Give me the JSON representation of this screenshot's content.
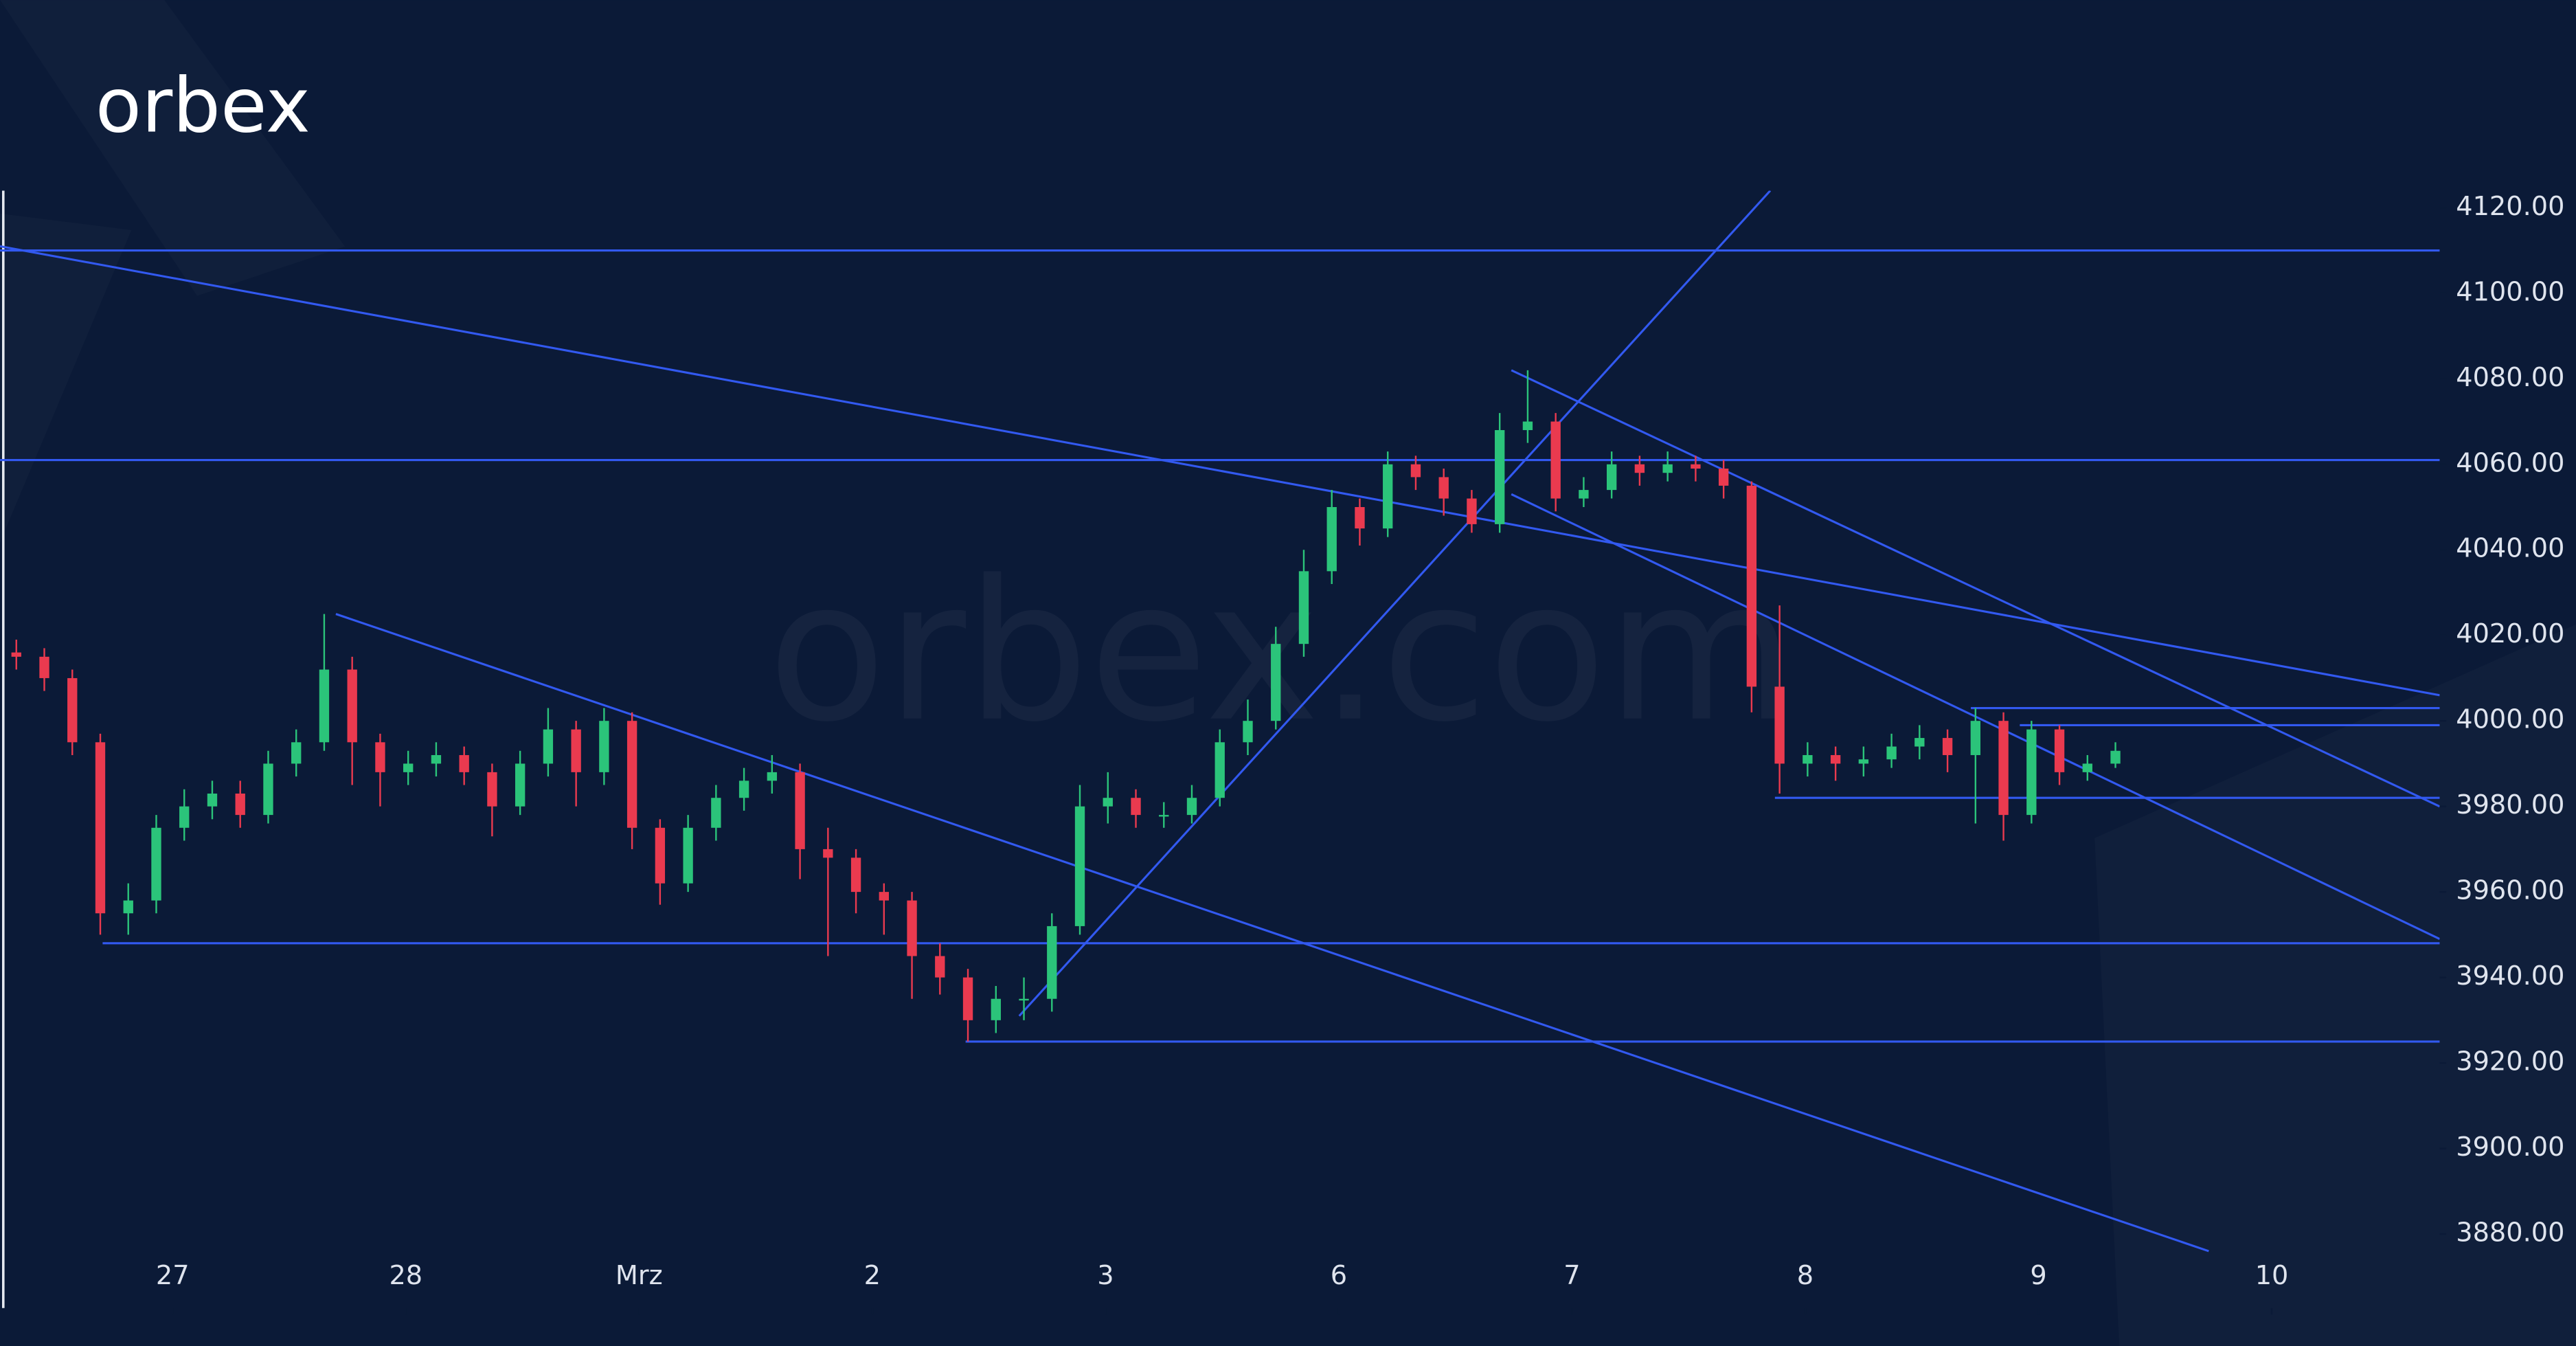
{
  "logo": "orbex",
  "watermark": "orbex.com",
  "chart_data": {
    "type": "candlestick",
    "up_color": "#2bc47a",
    "down_color": "#ea3a4f",
    "line_color": "#3259f0",
    "xlim": [
      -0.74,
      9.72
    ],
    "ylim": [
      3865,
      4124
    ],
    "xticks": [
      {
        "value": 0,
        "label": "27"
      },
      {
        "value": 1,
        "label": "28"
      },
      {
        "value": 2,
        "label": "Mrz"
      },
      {
        "value": 3,
        "label": "2"
      },
      {
        "value": 4,
        "label": "3"
      },
      {
        "value": 5,
        "label": "6"
      },
      {
        "value": 6,
        "label": "7"
      },
      {
        "value": 7,
        "label": "8"
      },
      {
        "value": 8,
        "label": "9"
      },
      {
        "value": 9,
        "label": "10"
      }
    ],
    "yticks": [
      {
        "value": 3880,
        "label": "3880.00"
      },
      {
        "value": 3900,
        "label": "3900.00"
      },
      {
        "value": 3920,
        "label": "3920.00"
      },
      {
        "value": 3940,
        "label": "3940.00"
      },
      {
        "value": 3960,
        "label": "3960.00"
      },
      {
        "value": 3980,
        "label": "3980.00"
      },
      {
        "value": 4000,
        "label": "4000.00"
      },
      {
        "value": 4020,
        "label": "4020.00"
      },
      {
        "value": 4040,
        "label": "4040.00"
      },
      {
        "value": 4060,
        "label": "4060.00"
      },
      {
        "value": 4080,
        "label": "4080.00"
      },
      {
        "value": 4100,
        "label": "4100.00"
      },
      {
        "value": 4120,
        "label": "4120.00"
      }
    ],
    "x": [
      -0.67,
      -0.55,
      -0.43,
      -0.31,
      -0.19,
      -0.07,
      0.05,
      0.17,
      0.29,
      0.41,
      0.53,
      0.65,
      0.77,
      0.89,
      1.01,
      1.13,
      1.25,
      1.37,
      1.49,
      1.61,
      1.73,
      1.85,
      1.97,
      2.09,
      2.21,
      2.33,
      2.45,
      2.57,
      2.69,
      2.81,
      2.93,
      3.05,
      3.17,
      3.29,
      3.41,
      3.53,
      3.65,
      3.77,
      3.89,
      4.01,
      4.13,
      4.25,
      4.37,
      4.49,
      4.61,
      4.73,
      4.85,
      4.97,
      5.09,
      5.21,
      5.33,
      5.45,
      5.57,
      5.69,
      5.81,
      5.93,
      6.05,
      6.17,
      6.29,
      6.41,
      6.53,
      6.65,
      6.77,
      6.89,
      7.01,
      7.13,
      7.25,
      7.37,
      7.49,
      7.61,
      7.73,
      7.85,
      7.97,
      8.09,
      8.21,
      8.33
    ],
    "open": [
      4016,
      4015,
      4010,
      3995,
      3955,
      3958,
      3975,
      3980,
      3983,
      3978,
      3990,
      3995,
      4012,
      3995,
      3988,
      3990,
      3992,
      3988,
      3980,
      3990,
      3998,
      3988,
      4000,
      3975,
      3962,
      3975,
      3982,
      3986,
      3988,
      3970,
      3968,
      3960,
      3958,
      3945,
      3940,
      3930,
      3935,
      3935,
      3952,
      3980,
      3982,
      3978,
      3978,
      3982,
      3995,
      4000,
      4018,
      4035,
      4050,
      4045,
      4060,
      4057,
      4052,
      4046,
      4068,
      4070,
      4052,
      4054,
      4060,
      4058,
      4060,
      4059,
      4055,
      4008,
      3990,
      3992,
      3990,
      3991,
      3994,
      3996,
      3992,
      4000,
      3978,
      3998,
      3988,
      3990
    ],
    "high": [
      4019,
      4017,
      4012,
      3997,
      3962,
      3978,
      3984,
      3986,
      3986,
      3993,
      3998,
      4025,
      4015,
      3997,
      3993,
      3995,
      3994,
      3990,
      3993,
      4003,
      4000,
      4003,
      4002,
      3977,
      3978,
      3985,
      3989,
      3992,
      3990,
      3975,
      3970,
      3962,
      3960,
      3948,
      3942,
      3938,
      3940,
      3955,
      3985,
      3988,
      3984,
      3981,
      3985,
      3998,
      4005,
      4022,
      4040,
      4054,
      4052,
      4063,
      4062,
      4059,
      4054,
      4072,
      4082,
      4072,
      4057,
      4063,
      4062,
      4063,
      4062,
      4061,
      4056,
      4027,
      3995,
      3994,
      3994,
      3997,
      3999,
      3998,
      4003,
      4002,
      4000,
      3999,
      3992,
      3995
    ],
    "low": [
      4012,
      4007,
      3992,
      3950,
      3950,
      3955,
      3972,
      3977,
      3975,
      3976,
      3987,
      3993,
      3985,
      3980,
      3985,
      3987,
      3985,
      3973,
      3978,
      3987,
      3980,
      3985,
      3970,
      3957,
      3960,
      3972,
      3979,
      3983,
      3963,
      3945,
      3955,
      3950,
      3935,
      3936,
      3925,
      3927,
      3930,
      3932,
      3950,
      3976,
      3975,
      3975,
      3976,
      3980,
      3992,
      3998,
      4015,
      4032,
      4041,
      4043,
      4054,
      4048,
      4044,
      4044,
      4065,
      4049,
      4050,
      4052,
      4055,
      4056,
      4056,
      4052,
      4002,
      3983,
      3987,
      3986,
      3987,
      3989,
      3991,
      3988,
      3976,
      3972,
      3976,
      3985,
      3986,
      3989
    ],
    "close": [
      4015,
      4010,
      3995,
      3955,
      3958,
      3975,
      3980,
      3983,
      3978,
      3990,
      3995,
      4012,
      3995,
      3988,
      3990,
      3992,
      3988,
      3980,
      3990,
      3998,
      3988,
      4000,
      3975,
      3962,
      3975,
      3982,
      3986,
      3988,
      3970,
      3968,
      3960,
      3958,
      3945,
      3940,
      3930,
      3935,
      3935,
      3952,
      3980,
      3982,
      3978,
      3978,
      3982,
      3995,
      4000,
      4018,
      4035,
      4050,
      4045,
      4060,
      4057,
      4052,
      4046,
      4068,
      4070,
      4052,
      4054,
      4060,
      4058,
      4060,
      4059,
      4055,
      4008,
      3990,
      3992,
      3990,
      3991,
      3994,
      3996,
      3992,
      4000,
      3978,
      3998,
      3988,
      3990,
      3993
    ],
    "drawings": [
      {
        "x": [
          -0.74,
          9.72
        ],
        "y": [
          4110,
          4110
        ]
      },
      {
        "x": [
          -0.74,
          9.72
        ],
        "y": [
          4061,
          4061
        ]
      },
      {
        "x": [
          -0.3,
          9.72
        ],
        "y": [
          3948,
          3948
        ]
      },
      {
        "x": [
          3.4,
          9.72
        ],
        "y": [
          3925,
          3925
        ]
      },
      {
        "x": [
          7.71,
          9.72
        ],
        "y": [
          4003,
          4003
        ]
      },
      {
        "x": [
          7.92,
          9.72
        ],
        "y": [
          3999,
          3999
        ]
      },
      {
        "x": [
          6.87,
          9.72
        ],
        "y": [
          3982,
          3982
        ]
      },
      {
        "x": [
          -0.74,
          9.72
        ],
        "y": [
          4111,
          4006
        ]
      },
      {
        "x": [
          0.7,
          8.73
        ],
        "y": [
          4025,
          3876
        ]
      },
      {
        "x": [
          3.63,
          6.85
        ],
        "y": [
          3931,
          4124
        ]
      },
      {
        "x": [
          5.74,
          9.72
        ],
        "y": [
          4082,
          3980
        ]
      },
      {
        "x": [
          5.74,
          9.72
        ],
        "y": [
          4053,
          3949
        ]
      }
    ]
  }
}
